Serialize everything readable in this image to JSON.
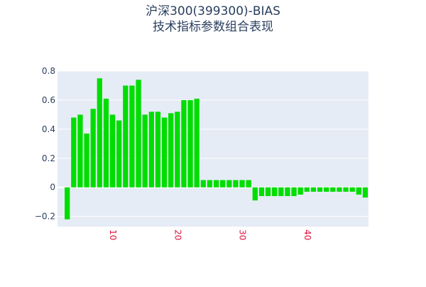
{
  "chart_data": {
    "type": "bar",
    "title": "沪深300(399300)-BIAS",
    "subtitle": "技术指标参数组合表现",
    "xlabel": "",
    "ylabel": "",
    "x": [
      3,
      4,
      5,
      6,
      7,
      8,
      9,
      10,
      11,
      12,
      13,
      14,
      15,
      16,
      17,
      18,
      19,
      20,
      21,
      22,
      23,
      24,
      25,
      26,
      27,
      28,
      29,
      30,
      31,
      32,
      33,
      34,
      35,
      36,
      37,
      38,
      39,
      40,
      41,
      42,
      43,
      44,
      45,
      46,
      47,
      48,
      49
    ],
    "values": [
      -0.22,
      0.48,
      0.5,
      0.37,
      0.54,
      0.75,
      0.61,
      0.5,
      0.46,
      0.7,
      0.7,
      0.74,
      0.5,
      0.52,
      0.52,
      0.48,
      0.51,
      0.52,
      0.6,
      0.6,
      0.61,
      0.05,
      0.05,
      0.05,
      0.05,
      0.05,
      0.05,
      0.05,
      0.05,
      -0.09,
      -0.06,
      -0.06,
      -0.06,
      -0.06,
      -0.06,
      -0.06,
      -0.05,
      -0.03,
      -0.03,
      -0.03,
      -0.03,
      -0.03,
      -0.03,
      -0.03,
      -0.03,
      -0.05,
      -0.07
    ],
    "xlim": [
      1.5,
      49.5
    ],
    "ylim": [
      -0.27,
      0.8
    ],
    "yticks": [
      -0.2,
      0,
      0.2,
      0.4,
      0.6,
      0.8
    ],
    "ytick_labels": [
      "−0.2",
      "0",
      "0.2",
      "0.4",
      "0.6",
      "0.8"
    ],
    "xticks": [
      10,
      20,
      30,
      40
    ],
    "xtick_labels": [
      "10",
      "20",
      "30",
      "40"
    ],
    "grid": true,
    "colors": {
      "bar": "#00dd00",
      "plot_bg": "#e5ecf6",
      "grid": "#ffffff",
      "title": "#2a3f5f",
      "ytick": "#2a3f5f",
      "xtick": "#dc143c"
    }
  }
}
